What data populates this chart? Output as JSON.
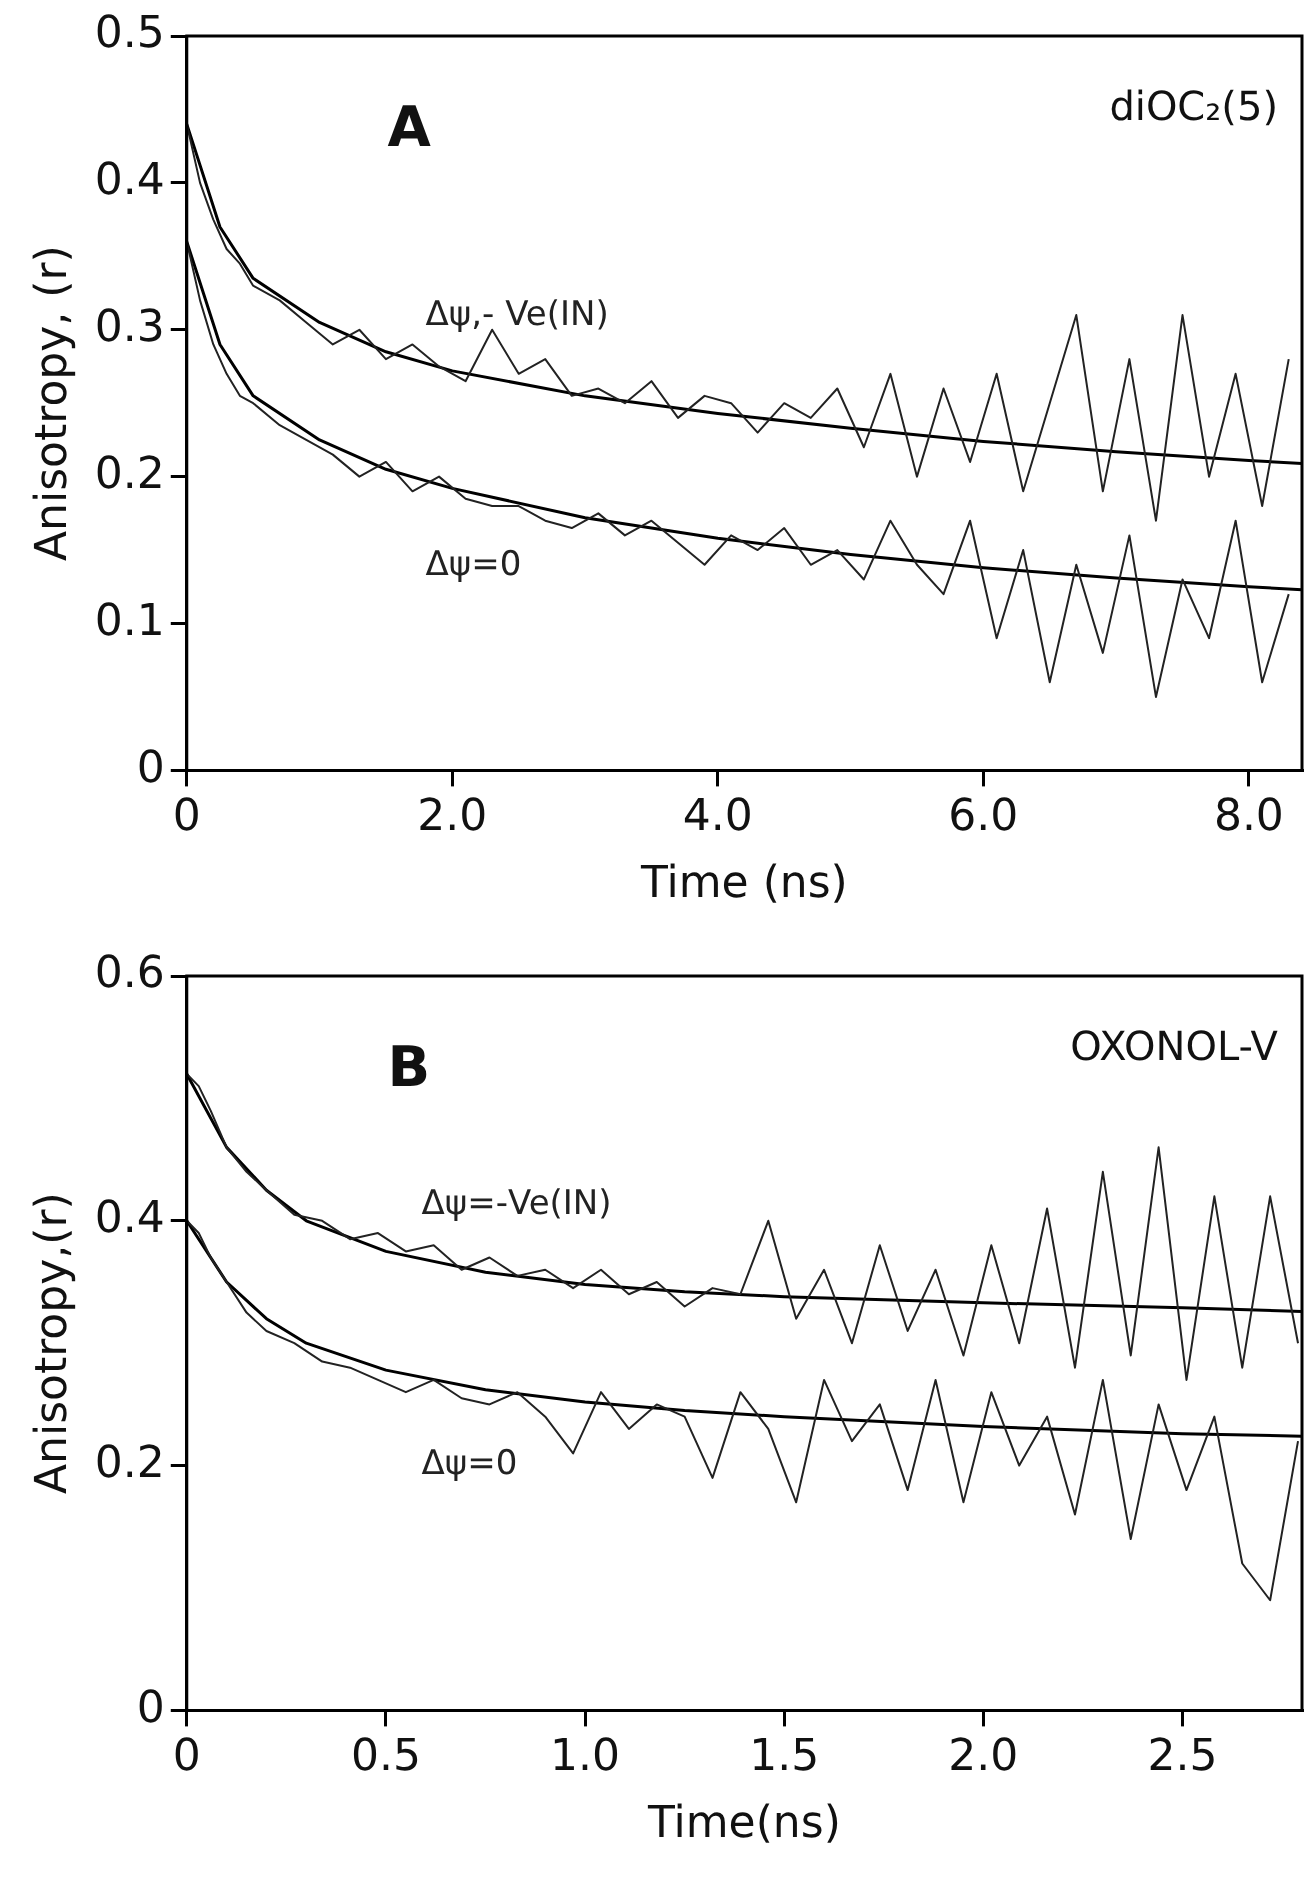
{
  "chart_data": [
    {
      "type": "line",
      "xlabel": "Time (ns)",
      "ylabel": "Anisotropy, (r)",
      "annotations": [
        "A",
        "diOC₂(5)"
      ],
      "xlim": [
        0,
        8.4
      ],
      "ylim": [
        0,
        0.5
      ],
      "xticks": [
        0,
        {
          "value": 2,
          "label": "2.0"
        },
        {
          "value": 4,
          "label": "4.0"
        },
        {
          "value": 6,
          "label": "6.0"
        },
        {
          "value": 8,
          "label": "8.0"
        }
      ],
      "yticks": [
        0,
        0.1,
        0.2,
        0.3,
        0.4,
        0.5
      ],
      "grid": false,
      "legend": false,
      "marker": "none",
      "x": [
        0,
        0.1,
        0.2,
        0.3,
        0.4,
        0.5,
        0.7,
        0.9,
        1.1,
        1.3,
        1.5,
        1.7,
        1.9,
        2.1,
        2.3,
        2.5,
        2.7,
        2.9,
        3.1,
        3.3,
        3.5,
        3.7,
        3.9,
        4.1,
        4.3,
        4.5,
        4.7,
        4.9,
        5.1,
        5.3,
        5.5,
        5.7,
        5.9,
        6.1,
        6.3,
        6.5,
        6.7,
        6.9,
        7.1,
        7.3,
        7.5,
        7.7,
        7.9,
        8.1,
        8.3
      ],
      "series": [
        {
          "name": "Δψ,- Ve(IN)",
          "color": "#222222",
          "values": [
            0.44,
            0.4,
            0.375,
            0.355,
            0.345,
            0.33,
            0.32,
            0.305,
            0.29,
            0.3,
            0.28,
            0.29,
            0.275,
            0.265,
            0.3,
            0.27,
            0.28,
            0.255,
            0.26,
            0.25,
            0.265,
            0.24,
            0.255,
            0.25,
            0.23,
            0.25,
            0.24,
            0.26,
            0.22,
            0.27,
            0.2,
            0.26,
            0.21,
            0.27,
            0.19,
            0.25,
            0.31,
            0.19,
            0.28,
            0.17,
            0.31,
            0.2,
            0.27,
            0.18,
            0.28
          ]
        },
        {
          "name": "Δψ=0",
          "color": "#222222",
          "values": [
            0.36,
            0.32,
            0.29,
            0.27,
            0.255,
            0.25,
            0.235,
            0.225,
            0.215,
            0.2,
            0.21,
            0.19,
            0.2,
            0.185,
            0.18,
            0.18,
            0.17,
            0.165,
            0.175,
            0.16,
            0.17,
            0.155,
            0.14,
            0.16,
            0.15,
            0.165,
            0.14,
            0.15,
            0.13,
            0.17,
            0.14,
            0.12,
            0.17,
            0.09,
            0.15,
            0.06,
            0.14,
            0.08,
            0.16,
            0.05,
            0.13,
            0.09,
            0.17,
            0.06,
            0.12
          ]
        },
        {
          "type": "line",
          "color": "#000000",
          "x": [
            0,
            0.25,
            0.5,
            1,
            1.5,
            2,
            3,
            4,
            5,
            6,
            7,
            8,
            8.4
          ],
          "values": [
            0.44,
            0.37,
            0.335,
            0.305,
            0.285,
            0.272,
            0.255,
            0.243,
            0.233,
            0.224,
            0.217,
            0.211,
            0.209
          ]
        },
        {
          "type": "line",
          "color": "#000000",
          "x": [
            0,
            0.25,
            0.5,
            1,
            1.5,
            2,
            3,
            4,
            5,
            6,
            7,
            8,
            8.4
          ],
          "values": [
            0.36,
            0.29,
            0.255,
            0.225,
            0.205,
            0.192,
            0.172,
            0.158,
            0.147,
            0.138,
            0.131,
            0.125,
            0.123
          ]
        }
      ]
    },
    {
      "type": "line",
      "xlabel": "Time(ns)",
      "ylabel": "Anisotropy,(r)",
      "annotations": [
        "B",
        "OXONOL-V"
      ],
      "xlim": [
        0,
        2.8
      ],
      "ylim": [
        0,
        0.6
      ],
      "xticks": [
        0,
        0.5,
        {
          "value": 1,
          "label": "1.0"
        },
        1.5,
        {
          "value": 2,
          "label": "2.0"
        },
        2.5
      ],
      "yticks": [
        0,
        0.2,
        0.4,
        0.6
      ],
      "grid": false,
      "legend": false,
      "marker": "none",
      "x": [
        0,
        0.03,
        0.06,
        0.1,
        0.15,
        0.2,
        0.27,
        0.34,
        0.41,
        0.48,
        0.55,
        0.62,
        0.69,
        0.76,
        0.83,
        0.9,
        0.97,
        1.04,
        1.11,
        1.18,
        1.25,
        1.32,
        1.39,
        1.46,
        1.53,
        1.6,
        1.67,
        1.74,
        1.81,
        1.88,
        1.95,
        2.02,
        2.09,
        2.16,
        2.23,
        2.3,
        2.37,
        2.44,
        2.51,
        2.58,
        2.65,
        2.72,
        2.79
      ],
      "series": [
        {
          "name": "Δψ=-Ve(IN)",
          "color": "#222222",
          "values": [
            0.52,
            0.51,
            0.49,
            0.46,
            0.44,
            0.425,
            0.405,
            0.4,
            0.385,
            0.39,
            0.375,
            0.38,
            0.36,
            0.37,
            0.355,
            0.36,
            0.345,
            0.36,
            0.34,
            0.35,
            0.33,
            0.345,
            0.34,
            0.4,
            0.32,
            0.36,
            0.3,
            0.38,
            0.31,
            0.36,
            0.29,
            0.38,
            0.3,
            0.41,
            0.28,
            0.44,
            0.29,
            0.46,
            0.27,
            0.42,
            0.28,
            0.42,
            0.3
          ]
        },
        {
          "name": "Δψ=0",
          "color": "#222222",
          "values": [
            0.4,
            0.39,
            0.37,
            0.35,
            0.325,
            0.31,
            0.3,
            0.285,
            0.28,
            0.27,
            0.26,
            0.27,
            0.255,
            0.25,
            0.26,
            0.24,
            0.21,
            0.26,
            0.23,
            0.25,
            0.24,
            0.19,
            0.26,
            0.23,
            0.17,
            0.27,
            0.22,
            0.25,
            0.18,
            0.27,
            0.17,
            0.26,
            0.2,
            0.24,
            0.16,
            0.27,
            0.14,
            0.25,
            0.18,
            0.24,
            0.12,
            0.09,
            0.22
          ]
        },
        {
          "type": "line",
          "color": "#000000",
          "x": [
            0,
            0.1,
            0.2,
            0.3,
            0.5,
            0.75,
            1,
            1.25,
            1.5,
            2,
            2.5,
            2.8
          ],
          "values": [
            0.52,
            0.46,
            0.425,
            0.4,
            0.375,
            0.358,
            0.348,
            0.342,
            0.338,
            0.333,
            0.329,
            0.326
          ]
        },
        {
          "type": "line",
          "color": "#000000",
          "x": [
            0,
            0.1,
            0.2,
            0.3,
            0.5,
            0.75,
            1,
            1.25,
            1.5,
            2,
            2.5,
            2.8
          ],
          "values": [
            0.4,
            0.35,
            0.32,
            0.3,
            0.278,
            0.262,
            0.252,
            0.245,
            0.24,
            0.232,
            0.226,
            0.224
          ]
        }
      ]
    }
  ]
}
